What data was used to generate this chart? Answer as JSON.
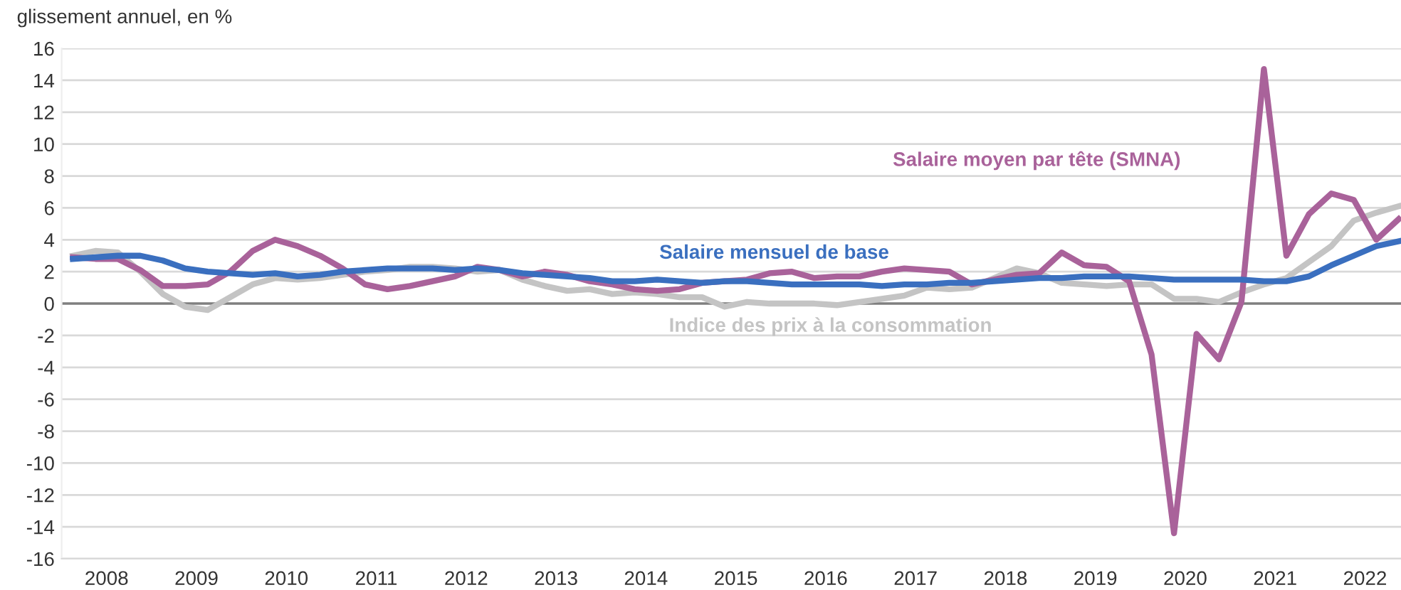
{
  "chart_data": {
    "type": "line",
    "ylabel": "glissement annuel, en %",
    "x": [
      2008.125,
      2008.375,
      2008.625,
      2008.875,
      2009.125,
      2009.375,
      2009.625,
      2009.875,
      2010.125,
      2010.375,
      2010.625,
      2010.875,
      2011.125,
      2011.375,
      2011.625,
      2011.875,
      2012.125,
      2012.375,
      2012.625,
      2012.875,
      2013.125,
      2013.375,
      2013.625,
      2013.875,
      2014.125,
      2014.375,
      2014.625,
      2014.875,
      2015.125,
      2015.375,
      2015.625,
      2015.875,
      2016.125,
      2016.375,
      2016.625,
      2016.875,
      2017.125,
      2017.375,
      2017.625,
      2017.875,
      2018.125,
      2018.375,
      2018.625,
      2018.875,
      2019.125,
      2019.375,
      2019.625,
      2019.875,
      2020.125,
      2020.375,
      2020.625,
      2020.875,
      2021.125,
      2021.375,
      2021.625,
      2021.875,
      2022.125,
      2022.375,
      2022.625,
      2022.875
    ],
    "series": [
      {
        "name": "Indice des prix à la consommation",
        "color": "#c4c4c4",
        "values": [
          3.0,
          3.3,
          3.2,
          2.0,
          0.6,
          -0.2,
          -0.4,
          0.4,
          1.2,
          1.6,
          1.5,
          1.6,
          1.8,
          2.0,
          2.1,
          2.3,
          2.3,
          2.2,
          2.0,
          2.1,
          1.5,
          1.1,
          0.8,
          0.9,
          0.6,
          0.7,
          0.6,
          0.4,
          0.4,
          -0.2,
          0.1,
          0.0,
          0.0,
          0.0,
          -0.1,
          0.1,
          0.3,
          0.5,
          1.0,
          0.9,
          1.0,
          1.6,
          2.2,
          1.9,
          1.3,
          1.2,
          1.1,
          1.2,
          1.2,
          0.3,
          0.3,
          0.1,
          0.7,
          1.2,
          1.6,
          2.6,
          3.6,
          5.2,
          5.7,
          6.1
        ]
      },
      {
        "name": "Salaire moyen par tête (SMNA)",
        "color": "#a9629a",
        "values": [
          2.9,
          2.8,
          2.8,
          2.1,
          1.1,
          1.1,
          1.2,
          2.0,
          3.3,
          4.0,
          3.6,
          3.0,
          2.2,
          1.2,
          0.9,
          1.1,
          1.4,
          1.7,
          2.3,
          2.1,
          1.7,
          2.0,
          1.8,
          1.4,
          1.2,
          0.9,
          0.8,
          0.9,
          1.3,
          1.4,
          1.5,
          1.9,
          2.0,
          1.6,
          1.7,
          1.7,
          2.0,
          2.2,
          2.1,
          2.0,
          1.2,
          1.5,
          1.8,
          1.9,
          3.2,
          2.4,
          2.3,
          1.4,
          -3.2,
          -14.4,
          -1.9,
          -3.5,
          0.1,
          14.7,
          3.0,
          5.6,
          6.9,
          6.5,
          4.0,
          5.3
        ]
      },
      {
        "name": "Salaire mensuel de base",
        "color": "#3a6fbf",
        "values": [
          2.8,
          2.9,
          3.0,
          3.0,
          2.7,
          2.2,
          2.0,
          1.9,
          1.8,
          1.9,
          1.7,
          1.8,
          2.0,
          2.1,
          2.2,
          2.2,
          2.2,
          2.1,
          2.2,
          2.1,
          1.9,
          1.8,
          1.7,
          1.6,
          1.4,
          1.4,
          1.5,
          1.4,
          1.3,
          1.4,
          1.4,
          1.3,
          1.2,
          1.2,
          1.2,
          1.2,
          1.1,
          1.2,
          1.2,
          1.3,
          1.3,
          1.4,
          1.5,
          1.6,
          1.6,
          1.7,
          1.7,
          1.7,
          1.6,
          1.5,
          1.5,
          1.5,
          1.5,
          1.4,
          1.4,
          1.7,
          2.4,
          3.0,
          3.6,
          3.9
        ]
      }
    ],
    "xlim": [
      2008,
      2022.9
    ],
    "xticks": [
      {
        "value": 2008.5,
        "label": "2008"
      },
      {
        "value": 2009.5,
        "label": "2009"
      },
      {
        "value": 2010.5,
        "label": "2010"
      },
      {
        "value": 2011.5,
        "label": "2011"
      },
      {
        "value": 2012.5,
        "label": "2012"
      },
      {
        "value": 2013.5,
        "label": "2013"
      },
      {
        "value": 2014.5,
        "label": "2014"
      },
      {
        "value": 2015.5,
        "label": "2015"
      },
      {
        "value": 2016.5,
        "label": "2016"
      },
      {
        "value": 2017.5,
        "label": "2017"
      },
      {
        "value": 2018.5,
        "label": "2018"
      },
      {
        "value": 2019.5,
        "label": "2019"
      },
      {
        "value": 2020.5,
        "label": "2020"
      },
      {
        "value": 2021.5,
        "label": "2021"
      },
      {
        "value": 2022.5,
        "label": "2022"
      }
    ],
    "ylim": [
      -16,
      16
    ],
    "yticks": [
      -16,
      -14,
      -12,
      -10,
      -8,
      -6,
      -4,
      -2,
      0,
      2,
      4,
      6,
      8,
      10,
      12,
      14,
      16
    ],
    "grid": "y",
    "marker": "none",
    "line_style": "solid"
  }
}
